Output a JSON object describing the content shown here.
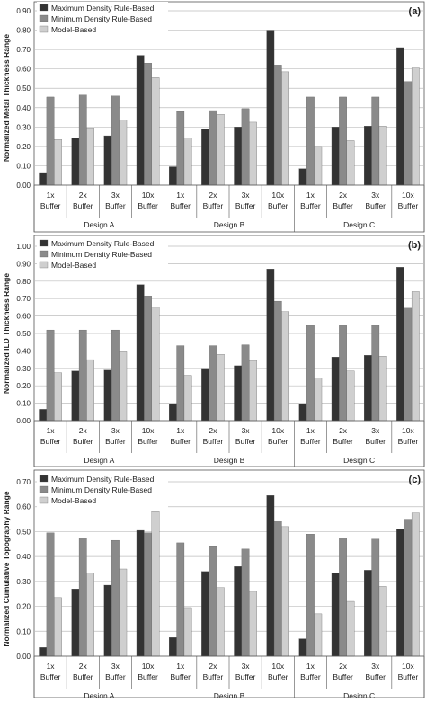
{
  "colors": {
    "max_density": "#333333",
    "min_density": "#8a8a8a",
    "model_based": "#cfcfcf",
    "grid": "#bdbdbd",
    "axis": "#555555",
    "text": "#222222"
  },
  "chart_data": [
    {
      "type": "bar",
      "panel_label": "(a)",
      "ylabel": "Normalized Metal Thickness Range",
      "ylim": [
        0,
        0.9
      ],
      "yticks": [
        "0.00",
        "0.10",
        "0.20",
        "0.30",
        "0.40",
        "0.50",
        "0.60",
        "0.70",
        "0.80",
        "0.90"
      ],
      "grid": true,
      "legend": "top-left",
      "groups": [
        "Design A",
        "Design B",
        "Design C"
      ],
      "categories": [
        [
          "1x",
          "Buffer"
        ],
        [
          "2x",
          "Buffer"
        ],
        [
          "3x",
          "Buffer"
        ],
        [
          "10x",
          "Buffer"
        ],
        [
          "1x",
          "Buffer"
        ],
        [
          "2x",
          "Buffer"
        ],
        [
          "3x",
          "Buffer"
        ],
        [
          "10x",
          "Buffer"
        ],
        [
          "1x",
          "Buffer"
        ],
        [
          "2x",
          "Buffer"
        ],
        [
          "3x",
          "Buffer"
        ],
        [
          "10x",
          "Buffer"
        ]
      ],
      "series": [
        {
          "name": "Maximum Density Rule-Based",
          "values": [
            0.065,
            0.245,
            0.255,
            0.67,
            0.095,
            0.29,
            0.3,
            0.8,
            0.085,
            0.3,
            0.305,
            0.71
          ]
        },
        {
          "name": "Minimum Density Rule-Based",
          "values": [
            0.455,
            0.465,
            0.46,
            0.63,
            0.38,
            0.385,
            0.395,
            0.62,
            0.455,
            0.455,
            0.455,
            0.535
          ]
        },
        {
          "name": "Model-Based",
          "values": [
            0.235,
            0.295,
            0.335,
            0.555,
            0.245,
            0.365,
            0.325,
            0.585,
            0.2,
            0.23,
            0.305,
            0.605
          ]
        }
      ]
    },
    {
      "type": "bar",
      "panel_label": "(b)",
      "ylabel": "Normalized ILD Thickness Range",
      "ylim": [
        0,
        1.0
      ],
      "yticks": [
        "0.00",
        "0.10",
        "0.20",
        "0.30",
        "0.40",
        "0.50",
        "0.60",
        "0.70",
        "0.80",
        "0.90",
        "1.00"
      ],
      "grid": true,
      "legend": "top-left",
      "groups": [
        "Design A",
        "Design B",
        "Design C"
      ],
      "categories": [
        [
          "1x",
          "Buffer"
        ],
        [
          "2x",
          "Buffer"
        ],
        [
          "3x",
          "Buffer"
        ],
        [
          "10x",
          "Buffer"
        ],
        [
          "1x",
          "Buffer"
        ],
        [
          "2x",
          "Buffer"
        ],
        [
          "3x",
          "Buffer"
        ],
        [
          "10x",
          "Buffer"
        ],
        [
          "1x",
          "Buffer"
        ],
        [
          "2x",
          "Buffer"
        ],
        [
          "3x",
          "Buffer"
        ],
        [
          "10x",
          "Buffer"
        ]
      ],
      "series": [
        {
          "name": "Maximum Density Rule-Based",
          "values": [
            0.065,
            0.285,
            0.29,
            0.78,
            0.095,
            0.3,
            0.315,
            0.87,
            0.095,
            0.365,
            0.375,
            0.88
          ]
        },
        {
          "name": "Minimum Density Rule-Based",
          "values": [
            0.52,
            0.52,
            0.52,
            0.715,
            0.43,
            0.43,
            0.435,
            0.685,
            0.545,
            0.545,
            0.545,
            0.645
          ]
        },
        {
          "name": "Model-Based",
          "values": [
            0.275,
            0.35,
            0.395,
            0.65,
            0.26,
            0.38,
            0.345,
            0.625,
            0.245,
            0.285,
            0.37,
            0.74
          ]
        }
      ]
    },
    {
      "type": "bar",
      "panel_label": "(c)",
      "ylabel": "Normalized Cumulative Topography Range",
      "ylim": [
        0,
        0.7
      ],
      "yticks": [
        "0.00",
        "0.10",
        "0.20",
        "0.30",
        "0.40",
        "0.50",
        "0.60",
        "0.70"
      ],
      "grid": true,
      "legend": "top-left",
      "groups": [
        "Design A",
        "Design B",
        "Design C"
      ],
      "categories": [
        [
          "1x",
          "Buffer"
        ],
        [
          "2x",
          "Buffer"
        ],
        [
          "3x",
          "Buffer"
        ],
        [
          "10x",
          "Buffer"
        ],
        [
          "1x",
          "Buffer"
        ],
        [
          "2x",
          "Buffer"
        ],
        [
          "3x",
          "Buffer"
        ],
        [
          "10x",
          "Buffer"
        ],
        [
          "1x",
          "Buffer"
        ],
        [
          "2x",
          "Buffer"
        ],
        [
          "3x",
          "Buffer"
        ],
        [
          "10x",
          "Buffer"
        ]
      ],
      "series": [
        {
          "name": "Maximum Density Rule-Based",
          "values": [
            0.035,
            0.27,
            0.285,
            0.505,
            0.075,
            0.34,
            0.36,
            0.645,
            0.07,
            0.335,
            0.345,
            0.51
          ]
        },
        {
          "name": "Minimum Density Rule-Based",
          "values": [
            0.495,
            0.475,
            0.465,
            0.495,
            0.455,
            0.44,
            0.43,
            0.54,
            0.49,
            0.475,
            0.47,
            0.55
          ]
        },
        {
          "name": "Model-Based",
          "values": [
            0.235,
            0.335,
            0.35,
            0.58,
            0.195,
            0.275,
            0.26,
            0.52,
            0.17,
            0.22,
            0.28,
            0.575
          ]
        }
      ]
    }
  ]
}
